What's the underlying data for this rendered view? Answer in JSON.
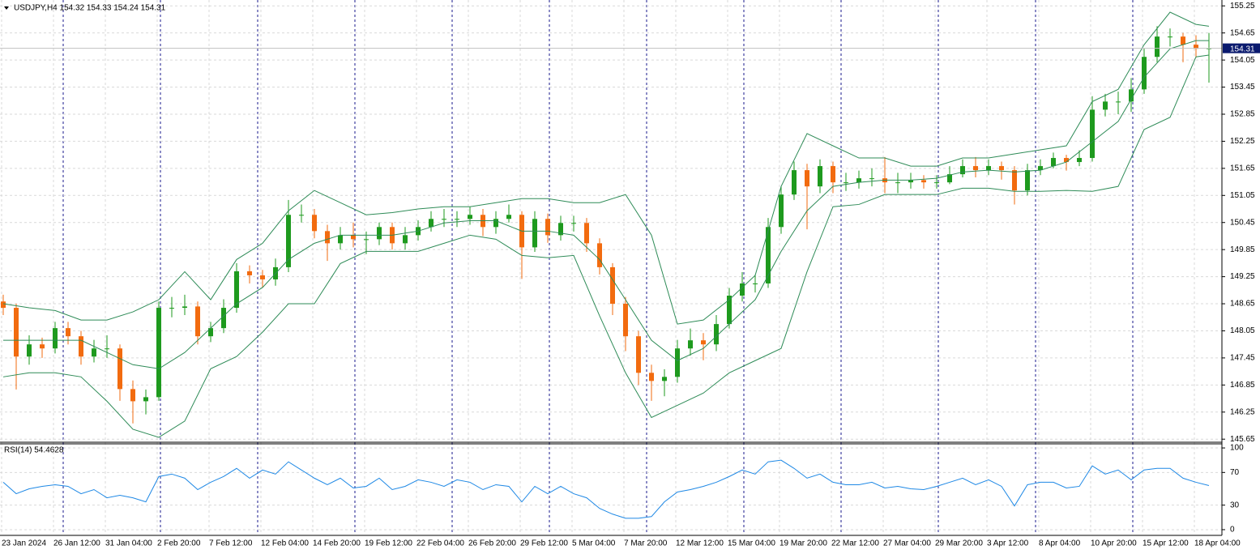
{
  "chart_data": [
    {
      "type": "candlestick",
      "header": "USDJPY,H4  154.32 154.33 154.24 154.31",
      "last_price": 154.31,
      "ylim": [
        145.6,
        155.38
      ],
      "yticks": [
        155.25,
        154.65,
        154.05,
        153.45,
        152.85,
        152.25,
        151.65,
        151.05,
        150.45,
        149.85,
        149.25,
        148.65,
        148.05,
        147.45,
        146.85,
        146.25,
        145.65
      ],
      "grid": true,
      "up_color": "#1e9a1e",
      "down_color": "#f26b0f",
      "open": [
        148.7,
        148.56,
        147.48,
        147.75,
        147.66,
        148.11,
        147.93,
        147.48,
        147.66,
        147.66,
        146.76,
        146.49,
        146.58,
        148.56,
        148.56,
        148.59,
        147.93,
        148.11,
        148.56,
        149.37,
        149.28,
        149.19,
        149.46,
        150.62,
        150.62,
        150.26,
        149.99,
        150.17,
        150.08,
        150.08,
        150.35,
        149.99,
        150.17,
        150.35,
        150.53,
        150.53,
        150.53,
        150.62,
        150.35,
        150.53,
        150.62,
        149.9,
        150.53,
        150.17,
        150.44,
        150.44,
        149.99,
        149.46,
        148.65,
        147.93,
        147.12,
        146.94,
        147.03,
        147.66,
        147.84,
        147.75,
        148.2,
        148.83,
        149.1,
        149.1,
        150.35,
        151.07,
        151.61,
        151.25,
        151.7,
        151.34,
        151.34,
        151.43,
        151.43,
        151.34,
        151.34,
        151.39,
        151.34,
        151.34,
        151.52,
        151.7,
        151.61,
        151.7,
        151.61,
        151.16,
        151.61,
        151.7,
        151.88,
        151.79,
        151.88,
        152.95,
        153.13,
        153.13,
        153.4,
        154.12,
        154.57,
        154.57,
        154.39,
        154.3
      ],
      "high": [
        148.85,
        148.65,
        147.95,
        147.9,
        148.25,
        148.25,
        148.05,
        147.85,
        147.95,
        147.75,
        146.95,
        146.75,
        148.7,
        148.8,
        148.85,
        148.7,
        148.25,
        148.75,
        149.55,
        149.5,
        149.4,
        149.65,
        150.95,
        150.85,
        150.75,
        150.4,
        150.35,
        150.45,
        150.25,
        150.45,
        150.45,
        150.35,
        150.5,
        150.7,
        150.75,
        150.7,
        150.8,
        150.75,
        150.7,
        150.85,
        150.7,
        150.7,
        150.65,
        150.6,
        150.6,
        150.55,
        150.1,
        149.55,
        148.8,
        148.05,
        147.3,
        147.2,
        147.85,
        148.1,
        148.0,
        148.4,
        149.0,
        149.35,
        149.3,
        150.55,
        151.25,
        151.8,
        151.75,
        151.85,
        151.8,
        151.55,
        151.6,
        151.65,
        151.9,
        151.55,
        151.55,
        151.5,
        151.5,
        151.7,
        151.85,
        151.9,
        151.85,
        151.8,
        151.7,
        151.75,
        151.85,
        152.0,
        151.95,
        152.05,
        153.25,
        153.3,
        153.35,
        153.65,
        154.3,
        154.8,
        154.75,
        154.65,
        154.6,
        154.65
      ],
      "low": [
        148.4,
        146.75,
        147.3,
        147.45,
        147.55,
        147.75,
        147.3,
        147.35,
        147.45,
        146.5,
        146.0,
        146.2,
        146.5,
        148.35,
        148.4,
        147.75,
        147.8,
        148.0,
        148.45,
        149.1,
        149.0,
        149.05,
        149.35,
        150.45,
        150.1,
        149.6,
        149.85,
        149.9,
        149.75,
        149.95,
        149.85,
        149.85,
        150.05,
        150.25,
        150.35,
        150.35,
        150.4,
        150.15,
        150.2,
        150.45,
        149.2,
        149.8,
        150.0,
        150.05,
        150.25,
        149.8,
        149.3,
        148.4,
        147.6,
        146.85,
        146.5,
        146.6,
        146.9,
        147.5,
        147.4,
        147.6,
        148.1,
        148.7,
        148.9,
        149.0,
        150.2,
        150.95,
        150.3,
        151.1,
        151.1,
        151.15,
        151.2,
        151.25,
        151.1,
        151.1,
        151.2,
        151.2,
        151.2,
        151.3,
        151.45,
        151.45,
        151.5,
        151.4,
        150.85,
        151.05,
        151.5,
        151.65,
        151.6,
        151.7,
        151.8,
        152.8,
        152.85,
        152.9,
        153.3,
        154.0,
        154.35,
        154.0,
        154.1,
        153.55
      ],
      "close": [
        148.56,
        147.48,
        147.75,
        147.66,
        148.11,
        147.93,
        147.48,
        147.66,
        147.66,
        146.76,
        146.49,
        146.58,
        148.56,
        148.56,
        148.59,
        147.93,
        148.11,
        148.56,
        149.37,
        149.28,
        149.19,
        149.46,
        150.62,
        150.62,
        150.26,
        149.99,
        150.17,
        150.08,
        150.08,
        150.35,
        149.99,
        150.17,
        150.35,
        150.53,
        150.53,
        150.53,
        150.62,
        150.35,
        150.53,
        150.62,
        149.9,
        150.53,
        150.17,
        150.44,
        150.44,
        149.99,
        149.46,
        148.65,
        147.93,
        147.12,
        146.94,
        147.03,
        147.66,
        147.84,
        147.75,
        148.2,
        148.83,
        149.1,
        149.1,
        150.35,
        151.07,
        151.61,
        151.25,
        151.7,
        151.34,
        151.34,
        151.43,
        151.43,
        151.34,
        151.34,
        151.39,
        151.34,
        151.34,
        151.52,
        151.7,
        151.61,
        151.7,
        151.61,
        151.16,
        151.61,
        151.7,
        151.88,
        151.79,
        151.88,
        152.95,
        153.13,
        153.13,
        153.4,
        154.12,
        154.57,
        154.57,
        154.39,
        154.3,
        154.31
      ],
      "bands": {
        "x": [
          0,
          2,
          4,
          6,
          8,
          10,
          12,
          14,
          16,
          18,
          20,
          22,
          24,
          26,
          28,
          30,
          32,
          34,
          36,
          38,
          40,
          42,
          44,
          46,
          48,
          50,
          52,
          54,
          56,
          58,
          60,
          62,
          64,
          66,
          68,
          70,
          72,
          74,
          76,
          78,
          80,
          82,
          84,
          86,
          88,
          90,
          92,
          93
        ],
        "series": [
          {
            "color": "#2e8b57",
            "values": [
              148.65,
              148.56,
              148.5,
              148.29,
              148.29,
              148.47,
              148.74,
              149.36,
              148.74,
              149.63,
              149.99,
              150.71,
              151.16,
              150.89,
              150.62,
              150.67,
              150.75,
              150.8,
              150.8,
              150.89,
              150.98,
              150.98,
              150.89,
              150.89,
              151.07,
              150.17,
              148.2,
              148.29,
              148.74,
              149.28,
              151.25,
              152.42,
              152.15,
              151.88,
              151.88,
              151.7,
              151.7,
              151.88,
              151.88,
              151.97,
              152.06,
              152.15,
              153.13,
              153.4,
              154.39,
              155.11,
              154.84,
              154.8
            ]
          },
          {
            "color": "#2e8b57",
            "values": [
              147.84,
              147.84,
              147.84,
              147.84,
              147.57,
              147.3,
              147.21,
              147.57,
              148.11,
              148.65,
              149.01,
              149.63,
              149.99,
              150.17,
              150.17,
              150.17,
              150.26,
              150.44,
              150.49,
              150.49,
              150.26,
              150.26,
              150.17,
              149.63,
              148.74,
              147.84,
              147.39,
              147.66,
              148.2,
              148.74,
              149.81,
              150.71,
              151.25,
              151.34,
              151.39,
              151.39,
              151.43,
              151.57,
              151.61,
              151.57,
              151.61,
              151.79,
              152.24,
              152.69,
              153.67,
              154.3,
              154.48,
              154.48
            ]
          },
          {
            "color": "#2e8b57",
            "values": [
              147.03,
              147.12,
              147.12,
              147.03,
              146.49,
              145.87,
              145.69,
              146.05,
              147.21,
              147.48,
              148.02,
              148.65,
              148.65,
              149.54,
              149.81,
              149.81,
              149.81,
              149.99,
              150.17,
              150.08,
              149.72,
              149.67,
              149.72,
              148.38,
              147.12,
              146.13,
              146.4,
              146.67,
              147.12,
              147.39,
              147.66,
              149.36,
              150.8,
              150.85,
              151.07,
              151.07,
              151.07,
              151.21,
              151.21,
              151.14,
              151.14,
              151.16,
              151.14,
              151.25,
              152.51,
              152.78,
              154.12,
              154.16
            ]
          }
        ]
      }
    },
    {
      "type": "line",
      "label": "RSI(14) 54.4628",
      "color": "#1e88e5",
      "ylim": [
        -6,
        105
      ],
      "yticks": [
        100,
        70,
        30,
        0
      ],
      "grid": true,
      "values": [
        58,
        44,
        50,
        53,
        55,
        53,
        44,
        49,
        39,
        42,
        39,
        34,
        65,
        68,
        63,
        49,
        58,
        65,
        75,
        63,
        73,
        68,
        83,
        73,
        63,
        55,
        63,
        51,
        53,
        63,
        49,
        53,
        61,
        58,
        53,
        61,
        58,
        49,
        55,
        53,
        34,
        53,
        44,
        53,
        44,
        39,
        26,
        19,
        14,
        14,
        16,
        34,
        46,
        49,
        53,
        58,
        65,
        73,
        68,
        83,
        85,
        75,
        63,
        68,
        58,
        55,
        55,
        58,
        51,
        53,
        50,
        49,
        53,
        58,
        63,
        55,
        61,
        53,
        29,
        55,
        58,
        58,
        51,
        53,
        78,
        68,
        73,
        61,
        73,
        75,
        75,
        63,
        58,
        54
      ],
      "x_labels": [
        "23 Jan 2024",
        "26 Jan 12:00",
        "31 Jan 04:00",
        "2 Feb 20:00",
        "7 Feb 12:00",
        "12 Feb 04:00",
        "14 Feb 20:00",
        "19 Feb 12:00",
        "22 Feb 04:00",
        "26 Feb 20:00",
        "29 Feb 12:00",
        "5 Mar 04:00",
        "7 Mar 20:00",
        "12 Mar 12:00",
        "15 Mar 04:00",
        "19 Mar 20:00",
        "22 Mar 12:00",
        "27 Mar 04:00",
        "29 Mar 20:00",
        "3 Apr 12:00",
        "8 Apr 04:00",
        "10 Apr 20:00",
        "15 Apr 12:00",
        "18 Apr 04:00"
      ]
    }
  ]
}
